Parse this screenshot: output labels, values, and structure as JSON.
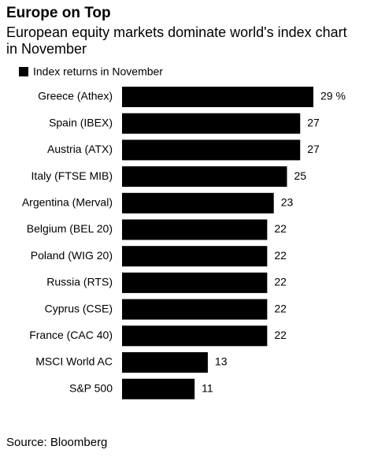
{
  "chart_data": {
    "type": "bar",
    "orientation": "horizontal",
    "title": "Europe on Top",
    "subtitle": "European equity markets dominate world's index chart in November",
    "categories": [
      "Greece (Athex)",
      "Spain (IBEX)",
      "Austria (ATX)",
      "Italy (FTSE MIB)",
      "Argentina (Merval)",
      "Belgium (BEL 20)",
      "Poland (WIG 20)",
      "Russia (RTS)",
      "Cyprus (CSE)",
      "France (CAC 40)",
      "MSCI World AC",
      "S&P 500"
    ],
    "series": [
      {
        "name": "Index returns in November",
        "color": "#000000",
        "values": [
          29,
          27,
          27,
          25,
          23,
          22,
          22,
          22,
          22,
          22,
          13,
          11
        ],
        "value_labels": [
          "29 %",
          "27",
          "27",
          "25",
          "23",
          "22",
          "22",
          "22",
          "22",
          "22",
          "13",
          "11"
        ]
      }
    ],
    "source": "Source: Bloomberg"
  }
}
